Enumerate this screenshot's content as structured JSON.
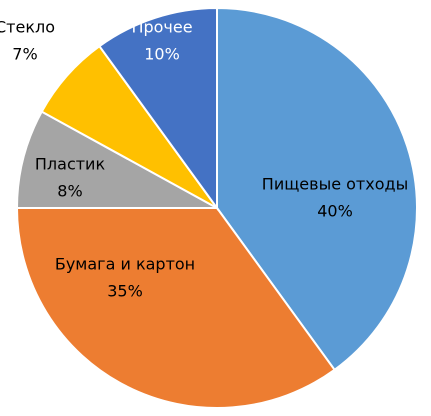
{
  "chart_data": {
    "type": "pie",
    "categories": [
      "Пищевые отходы",
      "Бумага и картон",
      "Пластик",
      "Стекло",
      "Прочее"
    ],
    "values": [
      40,
      35,
      8,
      7,
      10
    ],
    "value_labels": [
      "40%",
      "35%",
      "8%",
      "7%",
      "10%"
    ],
    "colors": [
      "#5b9bd5",
      "#ed7d31",
      "#a5a5a5",
      "#ffc000",
      "#4472c4"
    ]
  }
}
